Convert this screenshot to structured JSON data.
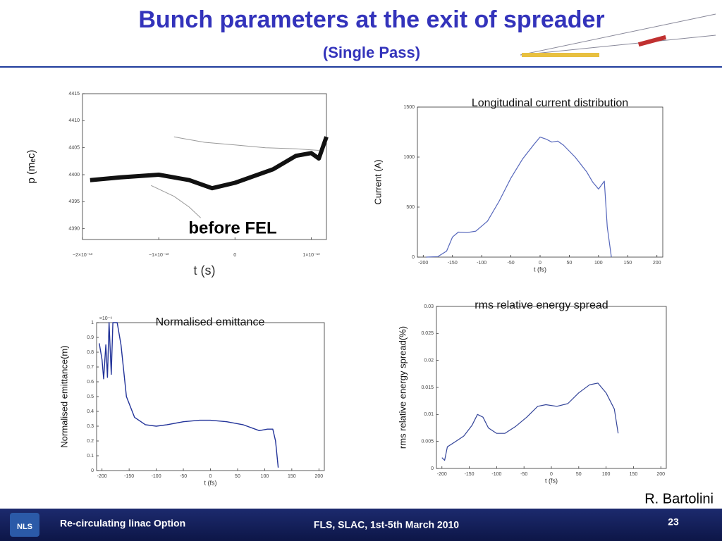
{
  "header": {
    "title": "Bunch parameters at the exit of spreader",
    "subtitle": "(Single Pass)"
  },
  "chart_data": [
    {
      "type": "line",
      "xlabel": "t (s)",
      "ylabel": "p (mₑc)",
      "annotation": "before FEL",
      "xlim": [
        -2e-13,
        1.2e-13
      ],
      "ylim": [
        4388,
        4415
      ],
      "xticks": [
        {
          "value": -2e-13,
          "label": "−2×10⁻¹³"
        },
        {
          "value": -1e-13,
          "label": "−1×10⁻¹³"
        },
        0,
        {
          "value": 1e-13,
          "label": "1×10⁻¹³"
        }
      ],
      "yticks": [
        4390,
        4395,
        4400,
        4405,
        4410,
        4415
      ],
      "series": [
        {
          "color": "#111111",
          "x": [
            -1.9e-13,
            -1.5e-13,
            -1e-13,
            -6e-14,
            -3e-14,
            0,
            5e-14,
            8e-14,
            1e-13,
            1.1e-13,
            1.2e-13
          ],
          "values": [
            4399,
            4399.5,
            4400,
            4399,
            4397.5,
            4398.5,
            4401,
            4403.5,
            4404,
            4403,
            4407
          ]
        },
        {
          "color": "#999999",
          "x": [
            -8e-14,
            -4e-14,
            0,
            4e-14,
            8e-14,
            1.1e-13
          ],
          "values": [
            4407,
            4406,
            4405.5,
            4405,
            4404.8,
            4404.5
          ]
        },
        {
          "color": "#999999",
          "x": [
            -1.1e-13,
            -8e-14,
            -6e-14,
            -4.5e-14
          ],
          "values": [
            4398,
            4396,
            4394,
            4392
          ]
        }
      ]
    },
    {
      "type": "line",
      "title": "Longitudinal current distribution",
      "xlabel": "t (fs)",
      "ylabel": "Current (A)",
      "xlim": [
        -210,
        210
      ],
      "ylim": [
        0,
        1500
      ],
      "xticks": [
        -200,
        -150,
        -100,
        -50,
        0,
        50,
        100,
        150,
        200
      ],
      "yticks": [
        0,
        500,
        1000,
        1500
      ],
      "series": [
        {
          "color": "#5566bb",
          "x": [
            -195,
            -175,
            -160,
            -150,
            -140,
            -125,
            -110,
            -90,
            -70,
            -50,
            -30,
            -10,
            0,
            10,
            20,
            30,
            40,
            60,
            80,
            90,
            100,
            110,
            115,
            122
          ],
          "values": [
            0,
            5,
            60,
            200,
            250,
            245,
            260,
            360,
            560,
            790,
            980,
            1130,
            1200,
            1180,
            1150,
            1160,
            1120,
            1000,
            850,
            750,
            680,
            760,
            300,
            0
          ]
        }
      ]
    },
    {
      "type": "line",
      "title": "Normalised emittance",
      "xlabel": "t (fs)",
      "ylabel": "Normalised emittance(m)",
      "multiplier": "×10⁻⁶",
      "xlim": [
        -210,
        210
      ],
      "ylim": [
        0,
        1
      ],
      "xticks": [
        -200,
        -150,
        -100,
        -50,
        0,
        50,
        100,
        150,
        200
      ],
      "yticks": [
        0,
        0.1,
        0.2,
        0.3,
        0.4,
        0.5,
        0.6,
        0.7,
        0.8,
        0.9,
        1
      ],
      "series": [
        {
          "color": "#223399",
          "x": [
            -205,
            -200,
            -197,
            -193,
            -190,
            -187,
            -183,
            -180,
            -172,
            -165,
            -155,
            -140,
            -120,
            -100,
            -80,
            -50,
            -20,
            0,
            30,
            60,
            90,
            105,
            115,
            120,
            125
          ],
          "values": [
            0.86,
            0.75,
            0.62,
            0.85,
            0.63,
            1,
            0.65,
            1,
            1,
            0.85,
            0.5,
            0.36,
            0.31,
            0.3,
            0.31,
            0.33,
            0.34,
            0.34,
            0.33,
            0.31,
            0.27,
            0.28,
            0.28,
            0.2,
            0.02
          ]
        }
      ]
    },
    {
      "type": "line",
      "title": "rms relative energy spread",
      "xlabel": "t (fs)",
      "ylabel": "rms relative energy spread(%)",
      "xlim": [
        -210,
        210
      ],
      "ylim": [
        0,
        0.03
      ],
      "xticks": [
        -200,
        -150,
        -100,
        -50,
        0,
        50,
        100,
        150,
        200
      ],
      "yticks": [
        0,
        0.005,
        0.01,
        0.015,
        0.02,
        0.025,
        0.03
      ],
      "series": [
        {
          "color": "#334499",
          "x": [
            -200,
            -195,
            -190,
            -175,
            -160,
            -145,
            -135,
            -125,
            -115,
            -100,
            -85,
            -65,
            -45,
            -25,
            -10,
            10,
            30,
            50,
            70,
            85,
            100,
            115,
            122
          ],
          "values": [
            0.002,
            0.0015,
            0.004,
            0.005,
            0.006,
            0.008,
            0.01,
            0.0095,
            0.0075,
            0.0065,
            0.0065,
            0.0078,
            0.0095,
            0.0115,
            0.0118,
            0.0115,
            0.012,
            0.014,
            0.0155,
            0.0158,
            0.014,
            0.011,
            0.0065
          ]
        }
      ]
    }
  ],
  "author": "R. Bartolini",
  "footer": {
    "logo": "NLS",
    "left": "Re-circulating linac Option",
    "center": "FLS, SLAC, 1st-5th March 2010",
    "page": "23"
  }
}
